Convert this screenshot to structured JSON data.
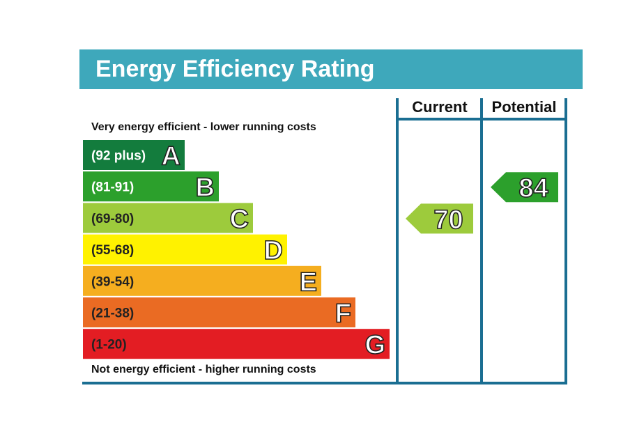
{
  "chart_data": {
    "type": "bar",
    "title": "Energy Efficiency Rating",
    "top_note": "Very energy efficient - lower running costs",
    "bottom_note": "Not energy efficient - higher running costs",
    "bands": [
      {
        "letter": "A",
        "range": "(92 plus)",
        "color": "#137c3d",
        "text_color": "#ffffff"
      },
      {
        "letter": "B",
        "range": "(81-91)",
        "color": "#2ca02c",
        "text_color": "#ffffff"
      },
      {
        "letter": "C",
        "range": "(69-80)",
        "color": "#9dcb3c",
        "text_color": "#222222"
      },
      {
        "letter": "D",
        "range": "(55-68)",
        "color": "#fff200",
        "text_color": "#222222"
      },
      {
        "letter": "E",
        "range": "(39-54)",
        "color": "#f5ae1f",
        "text_color": "#222222"
      },
      {
        "letter": "F",
        "range": "(21-38)",
        "color": "#ea6b23",
        "text_color": "#222222"
      },
      {
        "letter": "G",
        "range": "(1-20)",
        "color": "#e31d23",
        "text_color": "#222222"
      }
    ],
    "columns": [
      {
        "name": "Current",
        "value": 70,
        "band": "C",
        "color": "#9dcb3c"
      },
      {
        "name": "Potential",
        "value": 84,
        "band": "B",
        "color": "#2ca02c"
      }
    ],
    "colors": {
      "header": "#3ea8bb",
      "frame": "#1a6e92"
    }
  }
}
